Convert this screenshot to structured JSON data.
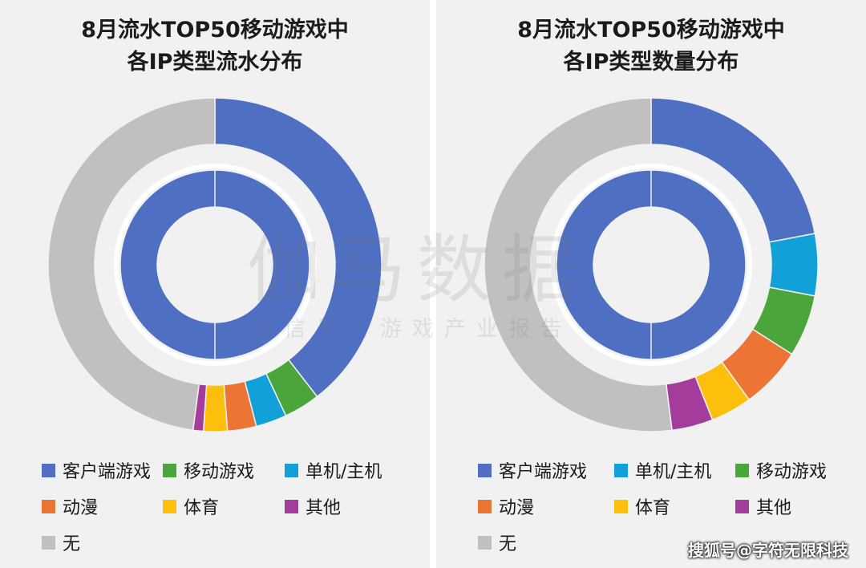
{
  "colors": {
    "客户端游戏": "#4f6fc2",
    "移动游戏": "#4aa53a",
    "单机/主机": "#12a0d8",
    "动漫": "#ec7535",
    "体育": "#fdbf0c",
    "其他": "#a33c9a",
    "无": "#c0c0c0"
  },
  "watermark": {
    "main": "伽马数据",
    "sub": "微信号：游戏产业报告"
  },
  "source_mark": "搜狐号@字符无限科技",
  "chart_data": [
    {
      "type": "pie",
      "title": [
        "8月流水TOP50移动游戏中",
        "各IP类型流水分布"
      ],
      "legend": [
        "客户端游戏",
        "移动游戏",
        "单机/主机",
        "动漫",
        "体育",
        "其他",
        "无"
      ],
      "inner_ring": {
        "slices": [
          {
            "name": "客户端游戏",
            "value": 100
          },
          {
            "name": "移动游戏",
            "value": 0
          },
          {
            "name": "单机/主机",
            "value": 0
          },
          {
            "name": "动漫",
            "value": 0
          },
          {
            "name": "体育",
            "value": 0
          },
          {
            "name": "其他",
            "value": 0
          },
          {
            "name": "无",
            "value": 0
          }
        ]
      },
      "outer_ring": {
        "slices": [
          {
            "name": "客户端游戏",
            "value": 39.5
          },
          {
            "name": "移动游戏",
            "value": 3.5
          },
          {
            "name": "单机/主机",
            "value": 3.0
          },
          {
            "name": "动漫",
            "value": 2.8
          },
          {
            "name": "体育",
            "value": 2.3
          },
          {
            "name": "其他",
            "value": 1.0
          },
          {
            "name": "无",
            "value": 47.9
          }
        ]
      }
    },
    {
      "type": "pie",
      "title": [
        "8月流水TOP50移动游戏中",
        "各IP类型数量分布"
      ],
      "legend": [
        "客户端游戏",
        "单机/主机",
        "移动游戏",
        "动漫",
        "体育",
        "其他",
        "无"
      ],
      "inner_ring": {
        "slices": [
          {
            "name": "客户端游戏",
            "value": 100
          },
          {
            "name": "单机/主机",
            "value": 0
          },
          {
            "name": "移动游戏",
            "value": 0
          },
          {
            "name": "动漫",
            "value": 0
          },
          {
            "name": "体育",
            "value": 0
          },
          {
            "name": "其他",
            "value": 0
          },
          {
            "name": "无",
            "value": 0
          }
        ]
      },
      "outer_ring": {
        "slices": [
          {
            "name": "客户端游戏",
            "value": 22
          },
          {
            "name": "单机/主机",
            "value": 6
          },
          {
            "name": "移动游戏",
            "value": 6
          },
          {
            "name": "动漫",
            "value": 6
          },
          {
            "name": "体育",
            "value": 4
          },
          {
            "name": "其他",
            "value": 4
          },
          {
            "name": "无",
            "value": 52
          }
        ]
      }
    }
  ]
}
